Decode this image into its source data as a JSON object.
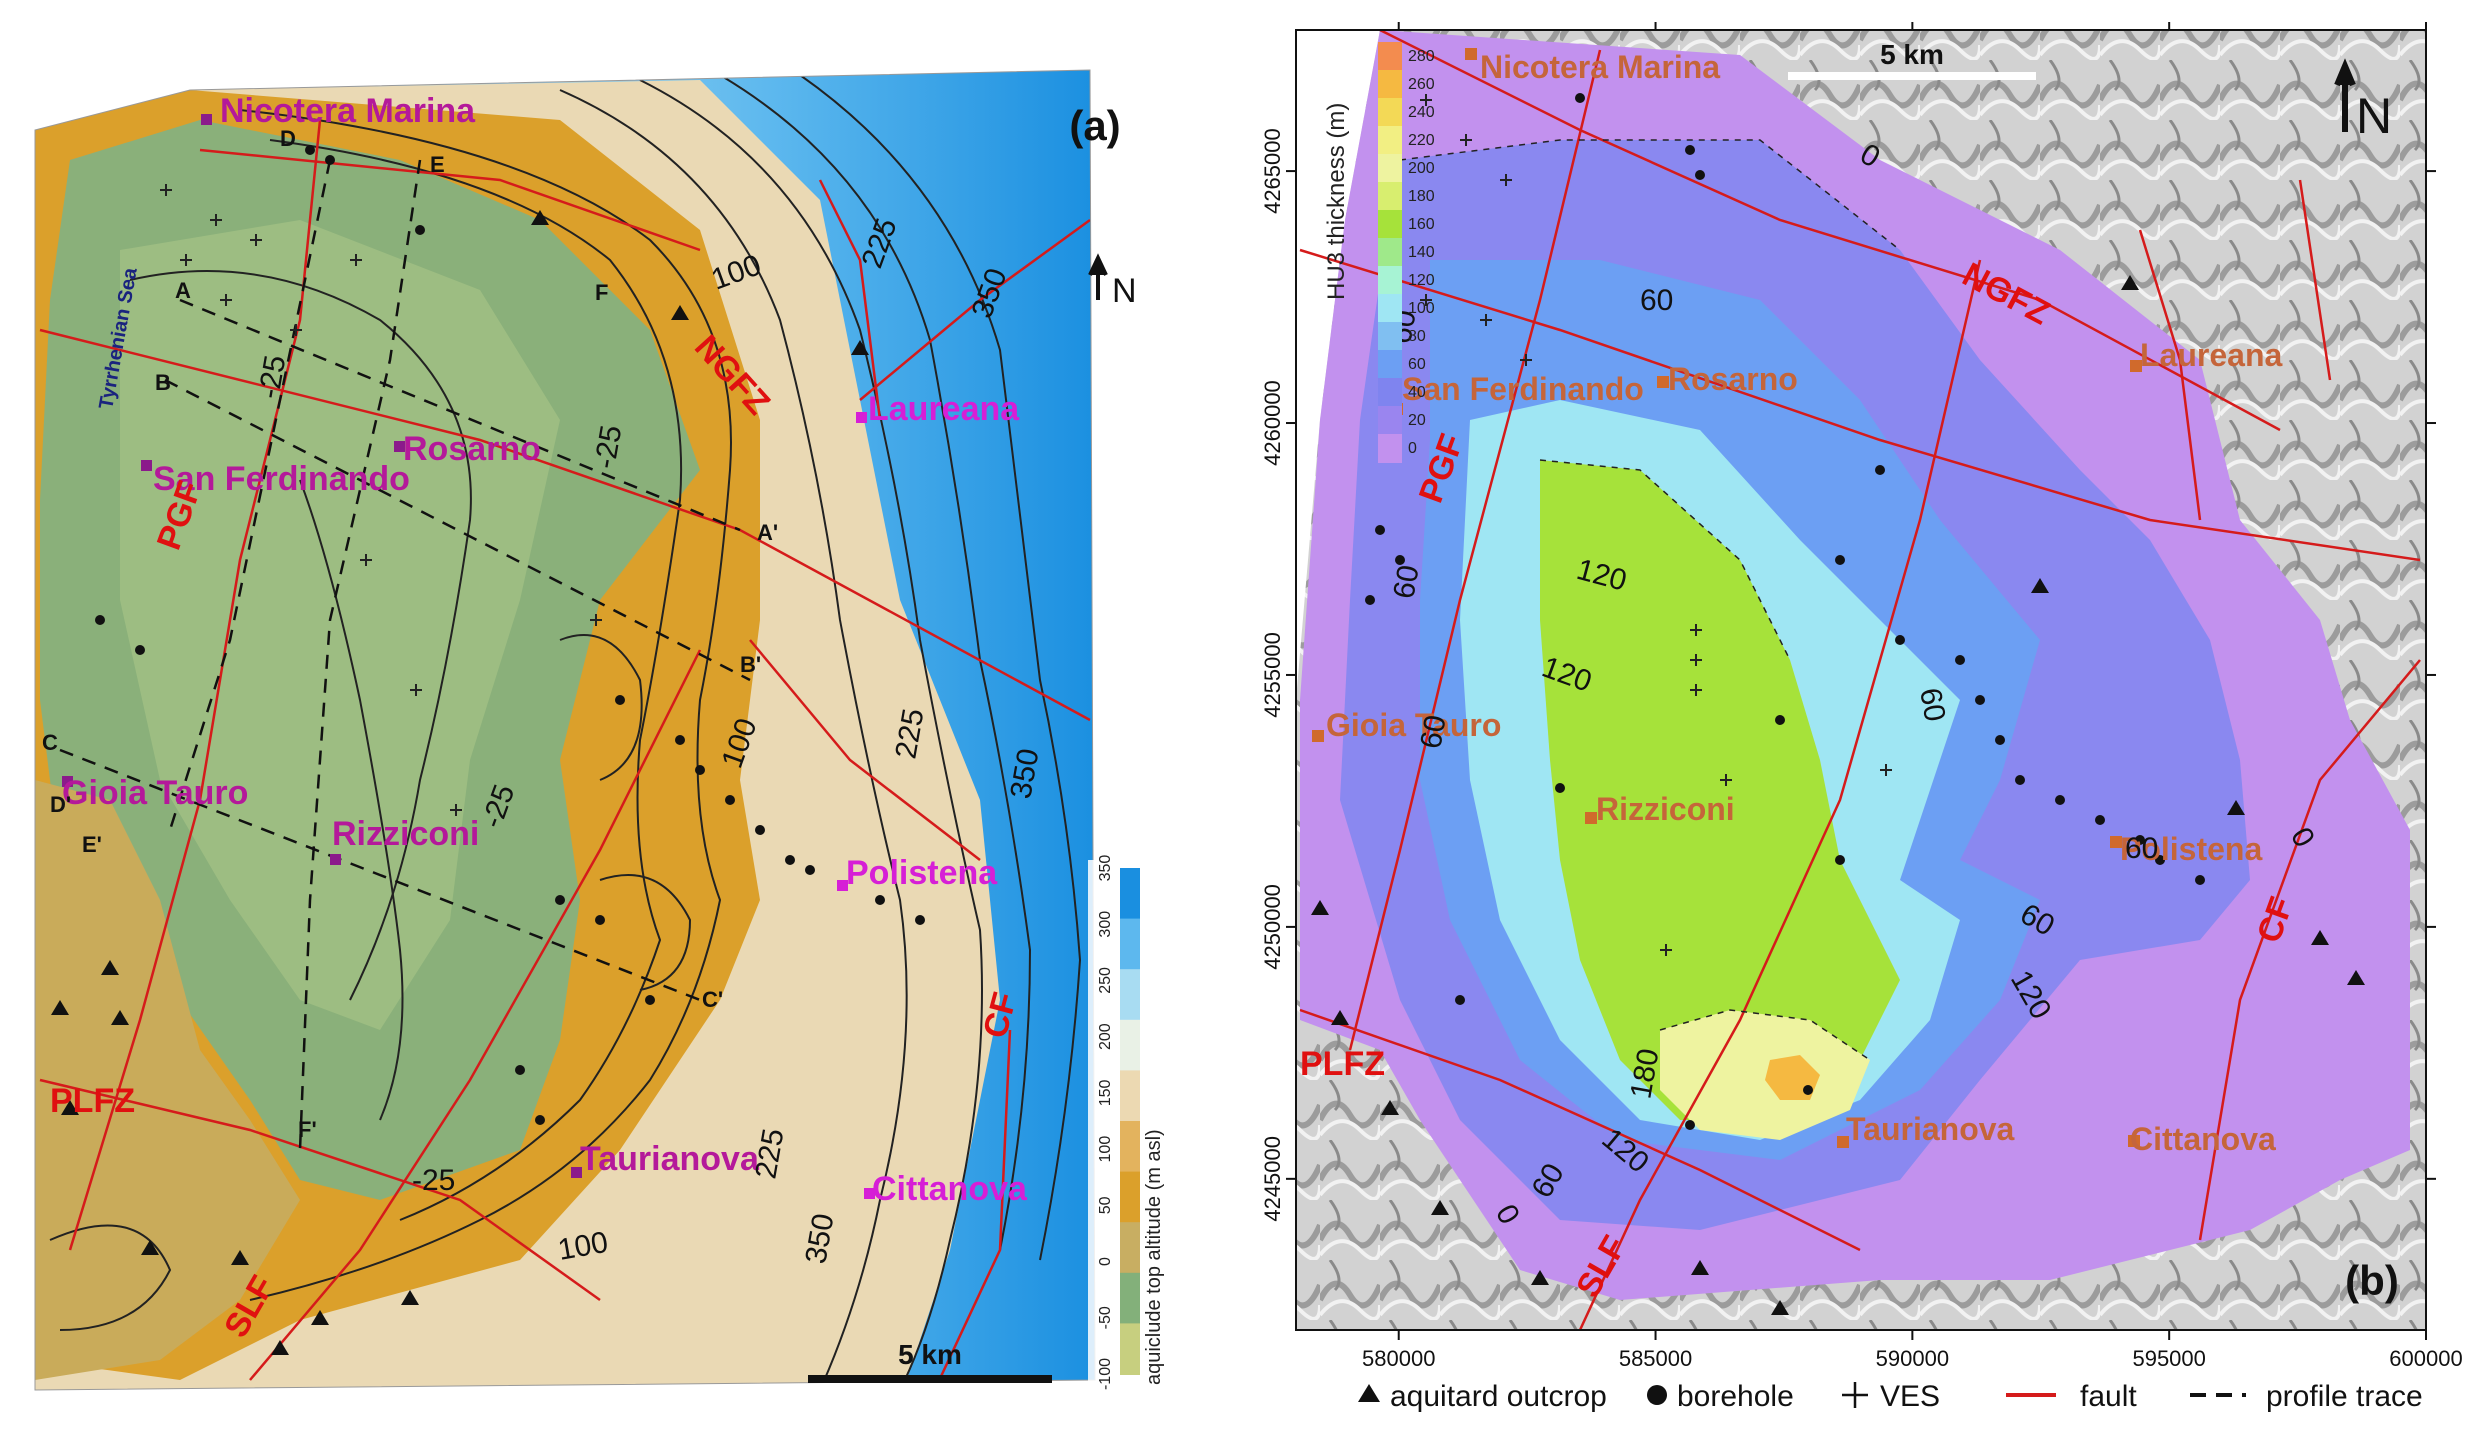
{
  "panels": {
    "a": {
      "label": "(a)",
      "north": "N",
      "scale": "5 km",
      "sea_label": "Tyrrhenian Sea",
      "colorbar": {
        "title": "aquiclude top altitude  (m asl)",
        "ticks": [
          "350",
          "300",
          "250",
          "200",
          "150",
          "100",
          "50",
          "0",
          "-50",
          "-100"
        ],
        "colors": [
          "#1a8fe0",
          "#5db8ee",
          "#a8dcf2",
          "#e9f1e6",
          "#ecd9b2",
          "#e3b35e",
          "#dba02b",
          "#c8ae62",
          "#83b07a",
          "#c7cf7f"
        ]
      },
      "towns": [
        "Nicotera Marina",
        "Rosarno",
        "San Ferdinando",
        "Laureana",
        "Gioia Tauro",
        "Rizziconi",
        "Polistena",
        "Taurianova",
        "Cittanova"
      ],
      "faults": [
        "NGFZ",
        "PGF",
        "PLFZ",
        "SLF",
        "CF"
      ],
      "contour_labels": [
        "100",
        "225",
        "350",
        "-25",
        "-25",
        "-25",
        "100",
        "225",
        "350",
        "-25",
        "100",
        "225",
        "350"
      ],
      "profile_labels": [
        "D",
        "E",
        "F",
        "A",
        "B",
        "A'",
        "B'",
        "C",
        "D'",
        "E'",
        "C'",
        "F'"
      ]
    },
    "b": {
      "label": "(b)",
      "north": "N",
      "scale": "5 km",
      "colorbar": {
        "title": "HU3 thickness (m)",
        "ticks": [
          "280",
          "260",
          "240",
          "220",
          "200",
          "180",
          "160",
          "140",
          "120",
          "100",
          "80",
          "60",
          "40",
          "20",
          "0"
        ],
        "colors": [
          "#f38c4f",
          "#f5b941",
          "#f3d956",
          "#f2ef83",
          "#eef3a0",
          "#d8ee6f",
          "#a6e23a",
          "#9fe98a",
          "#a7f3d4",
          "#9fe6f3",
          "#80bff1",
          "#6c9ff3",
          "#7f84ef",
          "#9a85ef",
          "#c291ee"
        ]
      },
      "towns": [
        "Nicotera Marina",
        "Rosarno",
        "San Ferdinando",
        "Laureana",
        "Gioia Tauro",
        "Rizziconi",
        "Polistena",
        "Taurianova",
        "Cittanova"
      ],
      "faults": [
        "NGFZ",
        "PGF",
        "PLFZ",
        "SLF",
        "CF"
      ],
      "contour_labels": [
        "0",
        "60",
        "60",
        "60",
        "120",
        "120",
        "60",
        "60",
        "60",
        "60",
        "120",
        "180",
        "120",
        "60",
        "0",
        "0"
      ],
      "x_ticks": [
        "580000",
        "585000",
        "590000",
        "595000",
        "600000"
      ],
      "y_ticks": [
        "4265000",
        "4260000",
        "4255000",
        "4250000",
        "4245000"
      ]
    }
  },
  "legend": [
    {
      "symbol": "triangle",
      "label": "aquitard outcrop"
    },
    {
      "symbol": "circle",
      "label": "borehole"
    },
    {
      "symbol": "plus",
      "label": "VES"
    },
    {
      "symbol": "red-line",
      "label": "fault"
    },
    {
      "symbol": "dashed-line",
      "label": "profile trace"
    }
  ]
}
